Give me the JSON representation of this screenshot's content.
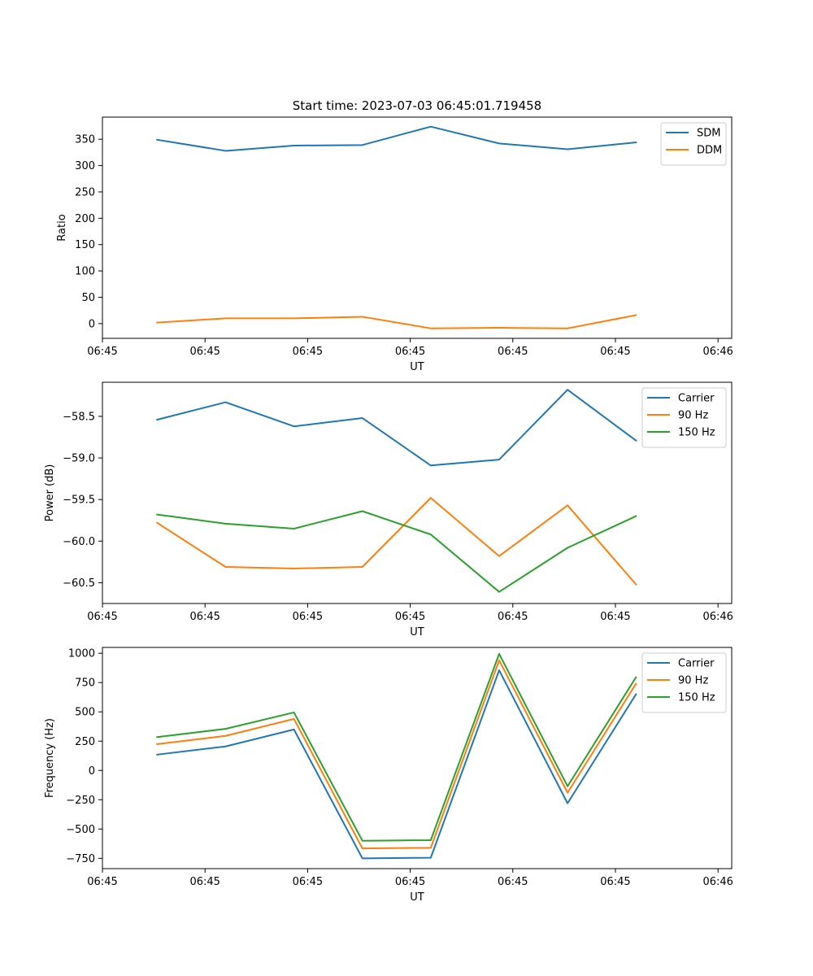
{
  "figure_title": "Start time: 2023-07-03 06:45:01.719458",
  "chart_data": [
    {
      "type": "line",
      "title": "Start time: 2023-07-03 06:45:01.719458",
      "xlabel": "UT",
      "ylabel": "Ratio",
      "x": [
        1,
        2,
        3,
        4,
        5,
        6,
        7,
        8
      ],
      "xlim": [
        0.2,
        9.4
      ],
      "xticks": [
        0.2,
        1.7,
        3.2,
        4.7,
        6.2,
        7.7,
        9.2
      ],
      "xticklabels": [
        "06:45",
        "06:45",
        "06:45",
        "06:45",
        "06:45",
        "06:45",
        "06:46"
      ],
      "ylim": [
        -28,
        392
      ],
      "yticks": [
        0,
        50,
        100,
        150,
        200,
        250,
        300,
        350
      ],
      "yticklabels": [
        "0",
        "50",
        "100",
        "150",
        "200",
        "250",
        "300",
        "350"
      ],
      "legend": "top-right",
      "series": [
        {
          "name": "SDM",
          "color": "#1f77b4",
          "values": [
            349,
            328,
            338,
            339,
            374,
            342,
            331,
            344
          ]
        },
        {
          "name": "DDM",
          "color": "#ff7f0e",
          "values": [
            2,
            10,
            10,
            13,
            -9,
            -8,
            -9,
            16
          ]
        }
      ]
    },
    {
      "type": "line",
      "title": "",
      "xlabel": "UT",
      "ylabel": "Power (dB)",
      "x": [
        1,
        2,
        3,
        4,
        5,
        6,
        7,
        8
      ],
      "xlim": [
        0.2,
        9.4
      ],
      "xticks": [
        0.2,
        1.7,
        3.2,
        4.7,
        6.2,
        7.7,
        9.2
      ],
      "xticklabels": [
        "06:45",
        "06:45",
        "06:45",
        "06:45",
        "06:45",
        "06:45",
        "06:46"
      ],
      "ylim": [
        -60.75,
        -58.09
      ],
      "yticks": [
        -60.5,
        -60.0,
        -59.5,
        -59.0,
        -58.5
      ],
      "yticklabels": [
        "−60.5",
        "−60.0",
        "−59.5",
        "−59.0",
        "−58.5"
      ],
      "legend": "top-right",
      "series": [
        {
          "name": "Carrier",
          "color": "#1f77b4",
          "values": [
            -58.54,
            -58.33,
            -58.62,
            -58.52,
            -59.09,
            -59.02,
            -58.18,
            -58.79
          ]
        },
        {
          "name": "90 Hz",
          "color": "#ff7f0e",
          "values": [
            -59.78,
            -60.31,
            -60.33,
            -60.31,
            -59.48,
            -60.18,
            -59.57,
            -60.52
          ]
        },
        {
          "name": "150 Hz",
          "color": "#2ca02c",
          "values": [
            -59.68,
            -59.79,
            -59.85,
            -59.64,
            -59.92,
            -60.61,
            -60.08,
            -59.7
          ]
        }
      ]
    },
    {
      "type": "line",
      "title": "",
      "xlabel": "UT",
      "ylabel": "Frequency (Hz)",
      "x": [
        1,
        2,
        3,
        4,
        5,
        6,
        7,
        8
      ],
      "xlim": [
        0.2,
        9.4
      ],
      "xticks": [
        0.2,
        1.7,
        3.2,
        4.7,
        6.2,
        7.7,
        9.2
      ],
      "xticklabels": [
        "06:45",
        "06:45",
        "06:45",
        "06:45",
        "06:45",
        "06:45",
        "06:46"
      ],
      "ylim": [
        -838,
        1050
      ],
      "yticks": [
        -750,
        -500,
        -250,
        0,
        250,
        500,
        750,
        1000
      ],
      "yticklabels": [
        "−750",
        "−500",
        "−250",
        "0",
        "250",
        "500",
        "750",
        "1000"
      ],
      "legend": "top-right",
      "series": [
        {
          "name": "Carrier",
          "color": "#1f77b4",
          "values": [
            135,
            205,
            350,
            -750,
            -745,
            855,
            -280,
            650
          ]
        },
        {
          "name": "90 Hz",
          "color": "#ff7f0e",
          "values": [
            225,
            295,
            440,
            -665,
            -660,
            940,
            -190,
            740
          ]
        },
        {
          "name": "150 Hz",
          "color": "#2ca02c",
          "values": [
            285,
            355,
            495,
            -600,
            -595,
            995,
            -135,
            795
          ]
        }
      ]
    }
  ]
}
